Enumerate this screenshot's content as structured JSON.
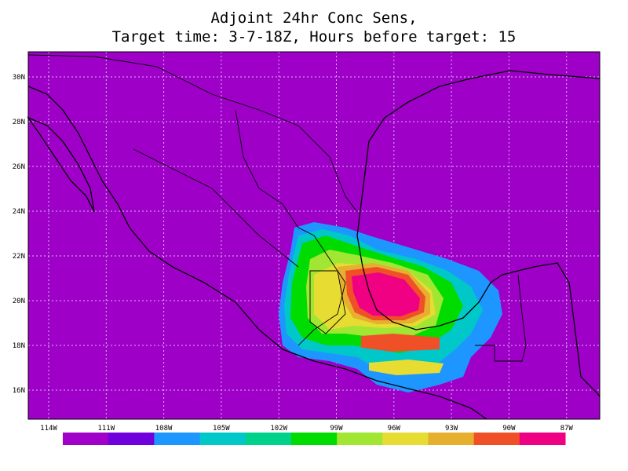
{
  "title": [
    "Adjoint 24hr Conc Sens,",
    "Target time: 3-7-18Z, Hours before target: 15"
  ],
  "lat_labels": [
    "30N",
    "28N",
    "26N",
    "24N",
    "22N",
    "20N",
    "18N",
    "16N"
  ],
  "lon_labels": [
    "114W",
    "111W",
    "108W",
    "105W",
    "102W",
    "99W",
    "96W",
    "93W",
    "90W",
    "87W"
  ],
  "colorbar": {
    "colors": [
      "#a000c8",
      "#7000dc",
      "#1e96ff",
      "#00c8c8",
      "#00d28c",
      "#00dc00",
      "#a0e632",
      "#e6dc32",
      "#e6af2d",
      "#f05028",
      "#f00082"
    ]
  }
}
